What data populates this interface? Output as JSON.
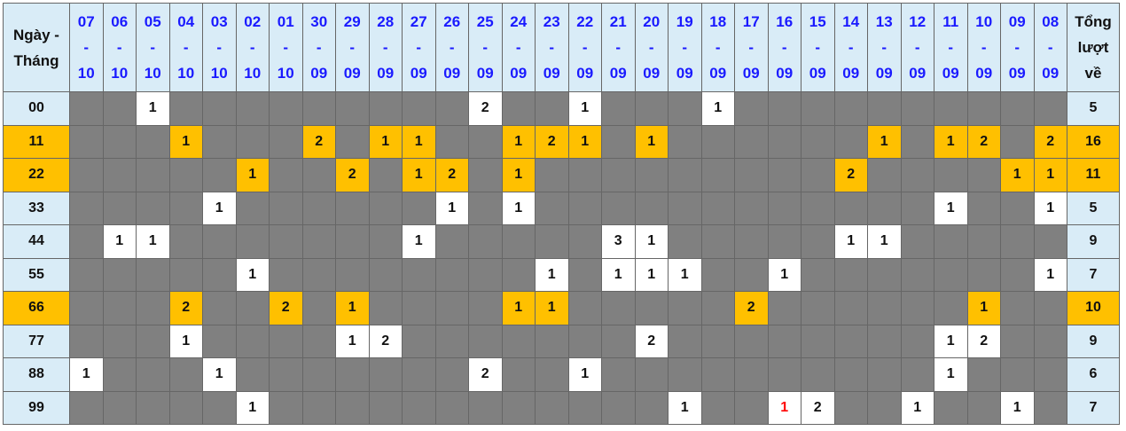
{
  "header": {
    "corner_line1": "Ngày -",
    "corner_line2": "Tháng",
    "total_line1": "Tổng",
    "total_line2": "lượt",
    "total_line3": "về",
    "dates": [
      [
        "07",
        "10"
      ],
      [
        "06",
        "10"
      ],
      [
        "05",
        "10"
      ],
      [
        "04",
        "10"
      ],
      [
        "03",
        "10"
      ],
      [
        "02",
        "10"
      ],
      [
        "01",
        "10"
      ],
      [
        "30",
        "09"
      ],
      [
        "29",
        "09"
      ],
      [
        "28",
        "09"
      ],
      [
        "27",
        "09"
      ],
      [
        "26",
        "09"
      ],
      [
        "25",
        "09"
      ],
      [
        "24",
        "09"
      ],
      [
        "23",
        "09"
      ],
      [
        "22",
        "09"
      ],
      [
        "21",
        "09"
      ],
      [
        "20",
        "09"
      ],
      [
        "19",
        "09"
      ],
      [
        "18",
        "09"
      ],
      [
        "17",
        "09"
      ],
      [
        "16",
        "09"
      ],
      [
        "15",
        "09"
      ],
      [
        "14",
        "09"
      ],
      [
        "13",
        "09"
      ],
      [
        "12",
        "09"
      ],
      [
        "11",
        "09"
      ],
      [
        "10",
        "09"
      ],
      [
        "09",
        "09"
      ],
      [
        "08",
        "09"
      ]
    ],
    "separator": "-"
  },
  "colors": {
    "header_bg": "#d9ecf7",
    "empty_cell": "#808080",
    "hit_cell": "#ffffff",
    "highlight": "#ffc000",
    "date_text": "#1a1aff",
    "special_text": "#ff0000"
  },
  "rows": [
    {
      "label": "00",
      "highlight": false,
      "total": "5",
      "cells": [
        "",
        "",
        "1",
        "",
        "",
        "",
        "",
        "",
        "",
        "",
        "",
        "",
        "2",
        "",
        "",
        "1",
        "",
        "",
        "",
        "1",
        "",
        "",
        "",
        "",
        "",
        "",
        "",
        "",
        "",
        ""
      ]
    },
    {
      "label": "11",
      "highlight": true,
      "total": "16",
      "cells": [
        "",
        "",
        "",
        "1",
        "",
        "",
        "",
        "2",
        "",
        "1",
        "1",
        "",
        "",
        "1",
        "2",
        "1",
        "",
        "1",
        "",
        "",
        "",
        "",
        "",
        "",
        "1",
        "",
        "1",
        "2",
        "",
        "2"
      ]
    },
    {
      "label": "22",
      "highlight": true,
      "total": "11",
      "cells": [
        "",
        "",
        "",
        "",
        "",
        "1",
        "",
        "",
        "2",
        "",
        "1",
        "2",
        "",
        "1",
        "",
        "",
        "",
        "",
        "",
        "",
        "",
        "",
        "",
        "2",
        "",
        "",
        "",
        "",
        "1",
        "1"
      ]
    },
    {
      "label": "33",
      "highlight": false,
      "total": "5",
      "cells": [
        "",
        "",
        "",
        "",
        "1",
        "",
        "",
        "",
        "",
        "",
        "",
        "1",
        "",
        "1",
        "",
        "",
        "",
        "",
        "",
        "",
        "",
        "",
        "",
        "",
        "",
        "",
        "1",
        "",
        "",
        "1"
      ]
    },
    {
      "label": "44",
      "highlight": false,
      "total": "9",
      "cells": [
        "",
        "1",
        "1",
        "",
        "",
        "",
        "",
        "",
        "",
        "",
        "1",
        "",
        "",
        "",
        "",
        "",
        "3",
        "1",
        "",
        "",
        "",
        "",
        "",
        "1",
        "1",
        "",
        "",
        "",
        "",
        ""
      ]
    },
    {
      "label": "55",
      "highlight": false,
      "total": "7",
      "cells": [
        "",
        "",
        "",
        "",
        "",
        "1",
        "",
        "",
        "",
        "",
        "",
        "",
        "",
        "",
        "1",
        "",
        "1",
        "1",
        "1",
        "",
        "",
        "1",
        "",
        "",
        "",
        "",
        "",
        "",
        "",
        "1"
      ]
    },
    {
      "label": "66",
      "highlight": true,
      "total": "10",
      "cells": [
        "",
        "",
        "",
        "2",
        "",
        "",
        "2",
        "",
        "1",
        "",
        "",
        "",
        "",
        "1",
        "1",
        "",
        "",
        "",
        "",
        "",
        "2",
        "",
        "",
        "",
        "",
        "",
        "",
        "1",
        "",
        ""
      ]
    },
    {
      "label": "77",
      "highlight": false,
      "total": "9",
      "cells": [
        "",
        "",
        "",
        "1",
        "",
        "",
        "",
        "",
        "1",
        "2",
        "",
        "",
        "",
        "",
        "",
        "",
        "",
        "2",
        "",
        "",
        "",
        "",
        "",
        "",
        "",
        "",
        "1",
        "2",
        "",
        ""
      ]
    },
    {
      "label": "88",
      "highlight": false,
      "total": "6",
      "cells": [
        "1",
        "",
        "",
        "",
        "1",
        "",
        "",
        "",
        "",
        "",
        "",
        "",
        "2",
        "",
        "",
        "1",
        "",
        "",
        "",
        "",
        "",
        "",
        "",
        "",
        "",
        "",
        "1",
        "",
        "",
        ""
      ]
    },
    {
      "label": "99",
      "highlight": false,
      "total": "7",
      "cells": [
        "",
        "",
        "",
        "",
        "",
        "1",
        "",
        "",
        "",
        "",
        "",
        "",
        "",
        "",
        "",
        "",
        "",
        "",
        "1",
        "",
        "",
        "1",
        "2",
        "",
        "",
        "1",
        "",
        "",
        "1",
        ""
      ],
      "red_cells": [
        21
      ]
    }
  ]
}
